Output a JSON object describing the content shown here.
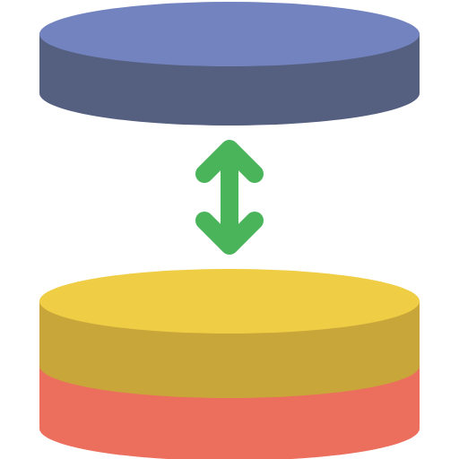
{
  "icon": {
    "title": "",
    "colors": {
      "background": "#ffffff",
      "top_disc_face": "#7383BF",
      "top_disc_side": "#556080",
      "arrow": "#4AB45B",
      "bottom_disc_top_face": "#EFCD44",
      "bottom_disc_mid_side": "#C9A63A",
      "bottom_disc_base_side": "#EC6F5D"
    },
    "parts": [
      "top-disc",
      "double-arrow",
      "bottom-disc-stack"
    ]
  }
}
